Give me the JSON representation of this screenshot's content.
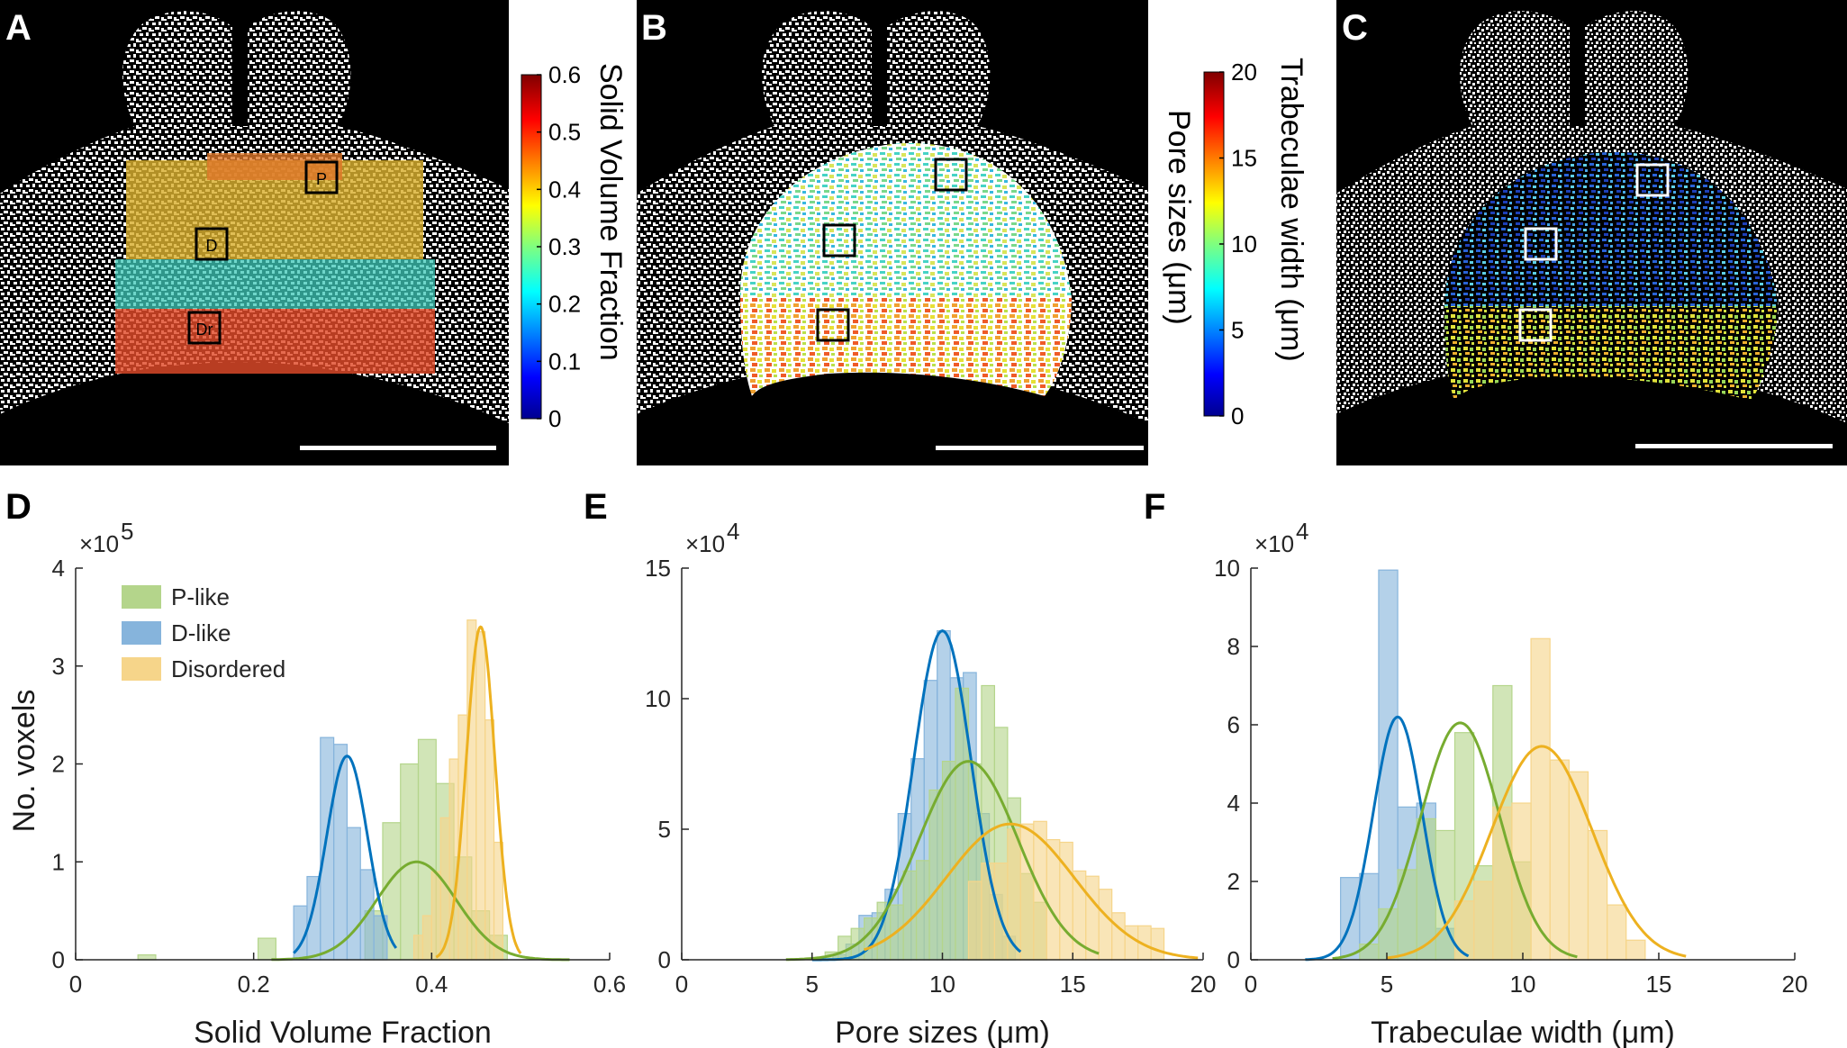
{
  "panels": {
    "A": "A",
    "B": "B",
    "C": "C",
    "D": "D",
    "E": "E",
    "F": "F"
  },
  "colorbar_a": {
    "label": "Solid Volume Fraction",
    "ticks": [
      "0",
      "0.1",
      "0.2",
      "0.3",
      "0.4",
      "0.5",
      "0.6"
    ]
  },
  "colorbar_b": {
    "label_outer": "Trabeculae width (μm)",
    "label_inner": "Pore sizes (μm)",
    "ticks": [
      "0",
      "5",
      "10",
      "15",
      "20"
    ]
  },
  "roi_labels": [
    "P",
    "D",
    "Dr"
  ],
  "legend": [
    "P-like",
    "D-like",
    "Disordered"
  ],
  "colors": {
    "p_like": "#77ac30",
    "d_like": "#0072bd",
    "disordered": "#edb120",
    "p_like_fill": "#b4d58b",
    "d_like_fill": "#86b4dc",
    "disordered_fill": "#f6d58a"
  },
  "ylabel_shared": "No. voxels",
  "chart_data": [
    {
      "panel": "D",
      "type": "bar",
      "title": "",
      "xlabel": "Solid Volume Fraction",
      "ylabel": "No. voxels",
      "multiplier": "×10",
      "exponent": "5",
      "xlim": [
        0,
        0.6
      ],
      "ylim": [
        0,
        4
      ],
      "xticks": [
        "0",
        "0.2",
        "0.4",
        "0.6"
      ],
      "yticks": [
        "0",
        "1",
        "2",
        "3",
        "4"
      ],
      "series": [
        {
          "name": "P-like",
          "bins": [
            [
              0.07,
              0.09,
              0.05
            ],
            [
              0.205,
              0.225,
              0.22
            ],
            [
              0.325,
              0.345,
              0.5
            ],
            [
              0.345,
              0.365,
              1.4
            ],
            [
              0.365,
              0.385,
              2.0
            ],
            [
              0.385,
              0.405,
              2.25
            ],
            [
              0.405,
              0.425,
              1.8
            ],
            [
              0.425,
              0.445,
              1.05
            ],
            [
              0.445,
              0.465,
              0.5
            ],
            [
              0.465,
              0.485,
              0.25
            ]
          ],
          "curve": {
            "mu": 0.383,
            "sigma": 0.045,
            "peak": 1.0,
            "range": [
              0.22,
              0.555
            ]
          }
        },
        {
          "name": "D-like",
          "bins": [
            [
              0.245,
              0.26,
              0.55
            ],
            [
              0.26,
              0.275,
              0.85
            ],
            [
              0.275,
              0.29,
              2.27
            ],
            [
              0.29,
              0.305,
              2.2
            ],
            [
              0.305,
              0.32,
              1.35
            ],
            [
              0.32,
              0.335,
              0.92
            ],
            [
              0.335,
              0.35,
              0.45
            ]
          ],
          "curve": {
            "mu": 0.305,
            "sigma": 0.023,
            "peak": 2.08,
            "range": [
              0.245,
              0.36
            ]
          }
        },
        {
          "name": "Disordered",
          "bins": [
            [
              0.38,
              0.39,
              0.25
            ],
            [
              0.39,
              0.4,
              0.45
            ],
            [
              0.4,
              0.41,
              0.9
            ],
            [
              0.41,
              0.42,
              1.45
            ],
            [
              0.42,
              0.43,
              2.05
            ],
            [
              0.43,
              0.44,
              2.5
            ],
            [
              0.44,
              0.45,
              3.47
            ],
            [
              0.45,
              0.46,
              3.35
            ],
            [
              0.46,
              0.47,
              2.45
            ],
            [
              0.47,
              0.48,
              1.2
            ]
          ],
          "curve": {
            "mu": 0.455,
            "sigma": 0.016,
            "peak": 3.4,
            "range": [
              0.405,
              0.5
            ]
          }
        }
      ]
    },
    {
      "panel": "E",
      "type": "bar",
      "title": "",
      "xlabel": "Pore sizes (μm)",
      "ylabel": "",
      "multiplier": "×10",
      "exponent": "4",
      "xlim": [
        0,
        20
      ],
      "ylim": [
        0,
        15
      ],
      "xticks": [
        "0",
        "5",
        "10",
        "15",
        "20"
      ],
      "yticks": [
        "0",
        "5",
        "10",
        "15"
      ],
      "series": [
        {
          "name": "D-like",
          "bins": [
            [
              5.8,
              6.3,
              0.2
            ],
            [
              6.3,
              6.8,
              0.6
            ],
            [
              6.8,
              7.3,
              1.7
            ],
            [
              7.3,
              7.8,
              1.8
            ],
            [
              7.8,
              8.3,
              2.7
            ],
            [
              8.3,
              8.8,
              5.6
            ],
            [
              8.8,
              9.3,
              7.7
            ],
            [
              9.3,
              9.8,
              10.7
            ],
            [
              9.8,
              10.3,
              12.6
            ],
            [
              10.3,
              10.8,
              10.8
            ],
            [
              10.8,
              11.3,
              11.0
            ],
            [
              11.3,
              11.8,
              5.6
            ],
            [
              11.8,
              12.3,
              2.5
            ],
            [
              12.3,
              12.8,
              0.9
            ]
          ],
          "curve": {
            "mu": 10.0,
            "sigma": 1.1,
            "peak": 12.6,
            "range": [
              5.0,
              13.0
            ]
          }
        },
        {
          "name": "P-like",
          "bins": [
            [
              5.5,
              6.0,
              0.3
            ],
            [
              6.0,
              6.5,
              0.9
            ],
            [
              6.5,
              7.0,
              1.2
            ],
            [
              7.0,
              7.5,
              1.6
            ],
            [
              7.5,
              8.0,
              2.2
            ],
            [
              8.0,
              8.5,
              2.1
            ],
            [
              8.5,
              9.0,
              3.4
            ],
            [
              9.0,
              9.5,
              3.8
            ],
            [
              9.5,
              10.0,
              6.5
            ],
            [
              10.0,
              10.5,
              7.6
            ],
            [
              10.5,
              11.0,
              10.4
            ],
            [
              11.0,
              11.5,
              7.5
            ],
            [
              11.5,
              12.0,
              10.5
            ],
            [
              12.0,
              12.5,
              8.9
            ],
            [
              12.5,
              13.0,
              6.2
            ],
            [
              13.0,
              13.5,
              3.3
            ],
            [
              13.5,
              14.0,
              2.2
            ]
          ],
          "curve": {
            "mu": 11.0,
            "sigma": 1.9,
            "peak": 7.6,
            "range": [
              4.0,
              16.0
            ]
          }
        },
        {
          "name": "Disordered",
          "bins": [
            [
              11.0,
              11.5,
              3.0
            ],
            [
              11.5,
              12.0,
              3.7
            ],
            [
              12.0,
              12.5,
              3.7
            ],
            [
              12.5,
              13.0,
              5.0
            ],
            [
              13.0,
              13.5,
              5.2
            ],
            [
              13.5,
              14.0,
              5.3
            ],
            [
              14.0,
              14.5,
              4.6
            ],
            [
              14.5,
              15.0,
              4.5
            ],
            [
              15.0,
              15.5,
              3.4
            ],
            [
              15.5,
              16.0,
              3.2
            ],
            [
              16.0,
              16.5,
              2.7
            ],
            [
              16.5,
              17.0,
              1.8
            ],
            [
              17.0,
              17.5,
              1.3
            ],
            [
              17.5,
              18.0,
              1.3
            ],
            [
              18.0,
              18.5,
              1.2
            ]
          ],
          "curve": {
            "mu": 12.6,
            "sigma": 2.45,
            "peak": 5.2,
            "range": [
              7.0,
              19.8
            ]
          }
        }
      ]
    },
    {
      "panel": "F",
      "type": "bar",
      "title": "",
      "xlabel": "Trabeculae width (μm)",
      "ylabel": "",
      "multiplier": "×10",
      "exponent": "4",
      "xlim": [
        0,
        20
      ],
      "ylim": [
        0,
        10
      ],
      "xticks": [
        "0",
        "5",
        "10",
        "15",
        "20"
      ],
      "yticks": [
        "0",
        "2",
        "4",
        "6",
        "8",
        "10"
      ],
      "series": [
        {
          "name": "D-like",
          "bins": [
            [
              3.3,
              4.0,
              2.1
            ],
            [
              4.0,
              4.7,
              2.2
            ],
            [
              4.7,
              5.4,
              9.95
            ],
            [
              5.4,
              6.1,
              3.9
            ],
            [
              6.1,
              6.8,
              4.0
            ],
            [
              6.8,
              7.5,
              0.8
            ]
          ],
          "curve": {
            "mu": 5.4,
            "sigma": 0.9,
            "peak": 6.2,
            "range": [
              2.0,
              8.0
            ]
          }
        },
        {
          "name": "P-like",
          "bins": [
            [
              4.0,
              4.7,
              0.4
            ],
            [
              4.7,
              5.4,
              1.3
            ],
            [
              5.4,
              6.1,
              2.3
            ],
            [
              6.1,
              6.8,
              3.6
            ],
            [
              6.8,
              7.5,
              3.3
            ],
            [
              7.5,
              8.2,
              5.8
            ],
            [
              8.2,
              8.9,
              2.4
            ],
            [
              8.9,
              9.6,
              7.0
            ],
            [
              9.6,
              10.3,
              2.5
            ]
          ],
          "curve": {
            "mu": 7.7,
            "sigma": 1.45,
            "peak": 6.05,
            "range": [
              3.0,
              12.0
            ]
          }
        },
        {
          "name": "Disordered",
          "bins": [
            [
              7.5,
              8.2,
              1.5
            ],
            [
              8.2,
              8.9,
              2.0
            ],
            [
              8.9,
              9.6,
              3.9
            ],
            [
              9.6,
              10.3,
              4.0
            ],
            [
              10.3,
              11.0,
              8.2
            ],
            [
              11.0,
              11.7,
              5.1
            ],
            [
              11.7,
              12.4,
              4.8
            ],
            [
              12.4,
              13.1,
              3.3
            ],
            [
              13.1,
              13.8,
              1.4
            ],
            [
              13.8,
              14.5,
              0.5
            ]
          ],
          "curve": {
            "mu": 10.7,
            "sigma": 1.85,
            "peak": 5.45,
            "range": [
              5.0,
              16.0
            ]
          }
        }
      ]
    }
  ]
}
